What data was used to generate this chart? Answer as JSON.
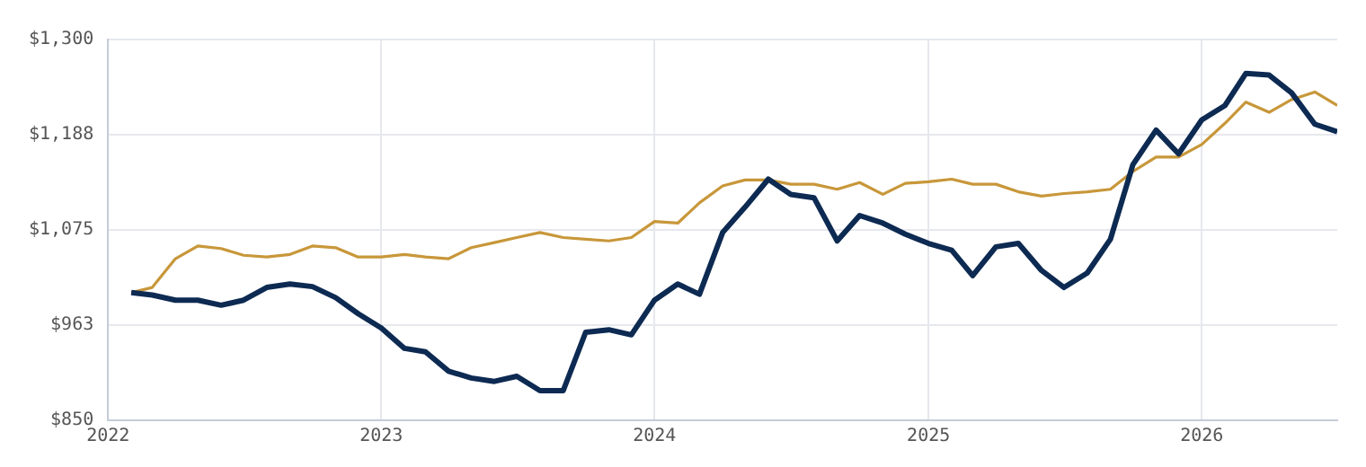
{
  "chart_data": {
    "type": "line",
    "x": [
      "2022-02",
      "2022-03",
      "2022-04",
      "2022-05",
      "2022-06",
      "2022-07",
      "2022-08",
      "2022-09",
      "2022-10",
      "2022-11",
      "2022-12",
      "2023-01",
      "2023-02",
      "2023-03",
      "2023-04",
      "2023-05",
      "2023-06",
      "2023-07",
      "2023-08",
      "2023-09",
      "2023-10",
      "2023-11",
      "2023-12",
      "2024-01",
      "2024-02",
      "2024-03",
      "2024-04",
      "2024-05",
      "2024-06",
      "2024-07",
      "2024-08",
      "2024-09",
      "2024-10",
      "2024-11",
      "2024-12",
      "2025-01",
      "2025-02",
      "2025-03",
      "2025-04",
      "2025-05",
      "2025-06",
      "2025-07",
      "2025-08",
      "2025-09",
      "2025-10",
      "2025-11",
      "2025-12",
      "2026-01",
      "2026-02",
      "2026-03",
      "2026-04",
      "2026-05",
      "2026-06",
      "2026-07"
    ],
    "series": [
      {
        "color": "#0d2a52",
        "values": [
          1001,
          998,
          992,
          992,
          986,
          992,
          1007,
          1011,
          1008,
          995,
          976,
          959,
          935,
          931,
          908,
          900,
          896,
          902,
          885,
          885,
          954,
          957,
          951,
          992,
          1011,
          999,
          1072,
          1102,
          1135,
          1117,
          1113,
          1062,
          1092,
          1083,
          1070,
          1059,
          1051,
          1021,
          1055,
          1059,
          1027,
          1007,
          1024,
          1064,
          1152,
          1193,
          1165,
          1205,
          1222,
          1260,
          1258,
          1237,
          1200,
          1191
        ]
      },
      {
        "color": "#c8973a",
        "values": [
          1001,
          1007,
          1041,
          1056,
          1053,
          1045,
          1043,
          1046,
          1056,
          1054,
          1043,
          1043,
          1046,
          1043,
          1041,
          1054,
          1060,
          1066,
          1072,
          1066,
          1064,
          1062,
          1066,
          1085,
          1083,
          1107,
          1127,
          1134,
          1134,
          1129,
          1129,
          1123,
          1131,
          1117,
          1130,
          1132,
          1135,
          1129,
          1129,
          1120,
          1115,
          1118,
          1120,
          1123,
          1144,
          1161,
          1161,
          1176,
          1201,
          1226,
          1214,
          1229,
          1238,
          1222
        ]
      }
    ],
    "xlim": [
      "2022-01",
      "2026-07"
    ],
    "xticks": [
      "2022",
      "2023",
      "2024",
      "2025",
      "2026"
    ],
    "ylim": [
      850,
      1300
    ],
    "yticks": [
      {
        "value": 850,
        "label": "$850"
      },
      {
        "value": 962.5,
        "label": "$963"
      },
      {
        "value": 1075,
        "label": "$1,075"
      },
      {
        "value": 1187.5,
        "label": "$1,188"
      },
      {
        "value": 1300,
        "label": "$1,300"
      }
    ],
    "grid": true,
    "marker": "none",
    "line_style": "solid"
  }
}
